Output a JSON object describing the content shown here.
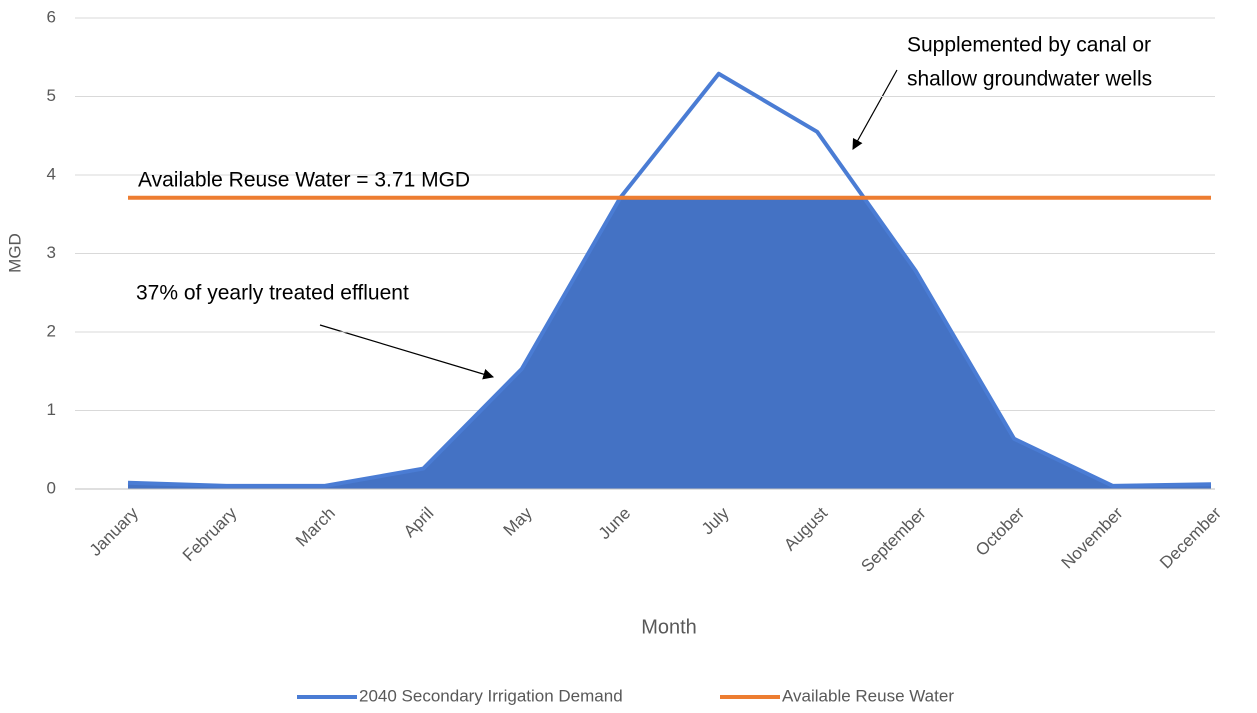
{
  "chart_data": {
    "type": "line",
    "x_label": "Month",
    "y_label": "MGD",
    "categories": [
      "January",
      "February",
      "March",
      "April",
      "May",
      "June",
      "July",
      "August",
      "September",
      "October",
      "November",
      "December"
    ],
    "series": [
      {
        "name": "2040 Secondary Irrigation Demand",
        "color": "#4a7cd4",
        "values": [
          0.08,
          0.04,
          0.04,
          0.26,
          1.53,
          3.71,
          5.29,
          4.55,
          2.78,
          0.64,
          0.04,
          0.06
        ]
      },
      {
        "name": "Available Reuse Water",
        "color": "#ed7d31",
        "values": [
          3.71,
          3.71,
          3.71,
          3.71,
          3.71,
          3.71,
          3.71,
          3.71,
          3.71,
          3.71,
          3.71,
          3.71
        ]
      }
    ],
    "area_color": "#4472c4",
    "ylim": [
      0,
      6
    ],
    "yticks": [
      0,
      1,
      2,
      3,
      4,
      5,
      6
    ],
    "grid": true,
    "legend": "bottom",
    "annotations": [
      {
        "text": "Available Reuse Water = 3.71 MGD"
      },
      {
        "text": "37% of yearly treated effluent"
      },
      {
        "lines": [
          "Supplemented by canal or",
          "shallow groundwater wells"
        ]
      }
    ]
  }
}
